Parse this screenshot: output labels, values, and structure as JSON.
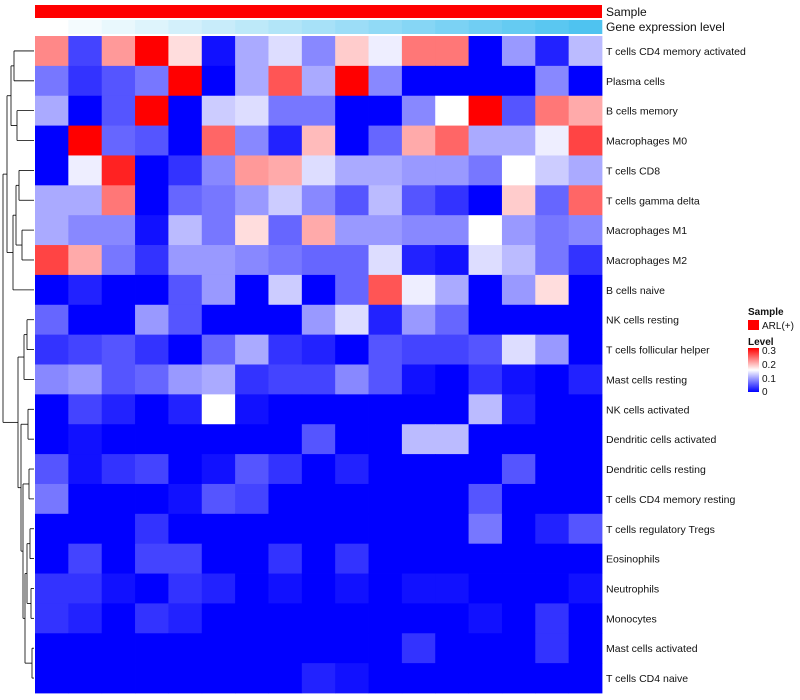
{
  "chart_data": {
    "type": "heatmap",
    "annotations": [
      {
        "name": "Sample",
        "color": "#ff0000"
      },
      {
        "name": "Gene expression level",
        "gradient": [
          "#ffffff",
          "#4fc3f0"
        ]
      }
    ],
    "rows": [
      "T cells CD4 memory activated",
      "Plasma cells",
      "B cells memory",
      "Macrophages M0",
      "T cells CD8",
      "T cells gamma delta",
      "Macrophages M1",
      "Macrophages M2",
      "B cells naive",
      "NK cells resting",
      "T cells follicular helper",
      "Mast cells resting",
      "NK cells activated",
      "Dendritic cells activated",
      "Dendritic cells resting",
      "T cells CD4 memory resting",
      "T cells regulatory  Tregs",
      "Eosinophils",
      "Neutrophils",
      "Monocytes",
      "Mast cells activated",
      "T cells CD4 naive"
    ],
    "values": [
      [
        0.22,
        0.04,
        0.21,
        0.3,
        0.17,
        0.01,
        0.1,
        0.13,
        0.08,
        0.18,
        0.14,
        0.23,
        0.23,
        0.0,
        0.09,
        0.02,
        0.11
      ],
      [
        0.07,
        0.03,
        0.05,
        0.07,
        0.3,
        0.0,
        0.1,
        0.25,
        0.1,
        0.3,
        0.08,
        0.0,
        0.0,
        0.0,
        0.0,
        0.08,
        0.0
      ],
      [
        0.1,
        0.0,
        0.05,
        0.3,
        0.0,
        0.12,
        0.13,
        0.07,
        0.07,
        0.0,
        0.0,
        0.08,
        0.15,
        0.3,
        0.05,
        0.23,
        0.2
      ],
      [
        0.0,
        0.3,
        0.06,
        0.05,
        0.0,
        0.24,
        0.08,
        0.02,
        0.19,
        0.0,
        0.06,
        0.2,
        0.24,
        0.1,
        0.1,
        0.14,
        0.26
      ],
      [
        0.0,
        0.14,
        0.28,
        0.0,
        0.03,
        0.08,
        0.21,
        0.2,
        0.13,
        0.1,
        0.1,
        0.09,
        0.09,
        0.07,
        0.15,
        0.12,
        0.1
      ],
      [
        0.1,
        0.1,
        0.23,
        0.0,
        0.06,
        0.07,
        0.09,
        0.12,
        0.08,
        0.05,
        0.11,
        0.05,
        0.03,
        0.0,
        0.18,
        0.06,
        0.24
      ],
      [
        0.1,
        0.08,
        0.08,
        0.01,
        0.11,
        0.07,
        0.17,
        0.06,
        0.2,
        0.09,
        0.09,
        0.08,
        0.08,
        0.15,
        0.09,
        0.07,
        0.08
      ],
      [
        0.26,
        0.2,
        0.07,
        0.03,
        0.09,
        0.09,
        0.08,
        0.07,
        0.06,
        0.06,
        0.13,
        0.02,
        0.01,
        0.13,
        0.11,
        0.07,
        0.03
      ],
      [
        0.0,
        0.02,
        0.0,
        0.0,
        0.05,
        0.09,
        0.0,
        0.12,
        0.0,
        0.06,
        0.25,
        0.14,
        0.1,
        0.0,
        0.09,
        0.17,
        0.0
      ],
      [
        0.06,
        0.0,
        0.0,
        0.09,
        0.05,
        0.0,
        0.0,
        0.0,
        0.09,
        0.13,
        0.02,
        0.09,
        0.06,
        0.0,
        0.0,
        0.0,
        0.0
      ],
      [
        0.03,
        0.04,
        0.05,
        0.03,
        0.0,
        0.06,
        0.1,
        0.03,
        0.02,
        0.0,
        0.05,
        0.04,
        0.04,
        0.05,
        0.13,
        0.09,
        0.0
      ],
      [
        0.08,
        0.09,
        0.05,
        0.06,
        0.09,
        0.1,
        0.03,
        0.04,
        0.04,
        0.08,
        0.05,
        0.01,
        0.0,
        0.03,
        0.01,
        0.0,
        0.02
      ],
      [
        0.0,
        0.04,
        0.02,
        0.0,
        0.02,
        0.15,
        0.01,
        0.0,
        0.0,
        0.0,
        0.0,
        0.0,
        0.0,
        0.11,
        0.02,
        0.0,
        0.0
      ],
      [
        0.0,
        0.01,
        0.0,
        0.0,
        0.0,
        0.0,
        0.0,
        0.0,
        0.05,
        0.0,
        0.0,
        0.11,
        0.11,
        0.0,
        0.0,
        0.0,
        0.0
      ],
      [
        0.05,
        0.01,
        0.03,
        0.04,
        0.0,
        0.01,
        0.05,
        0.03,
        0.0,
        0.02,
        0.0,
        0.0,
        0.0,
        0.0,
        0.05,
        0.0,
        0.0
      ],
      [
        0.07,
        0.0,
        0.0,
        0.0,
        0.01,
        0.05,
        0.04,
        0.0,
        0.0,
        0.0,
        0.0,
        0.0,
        0.0,
        0.05,
        0.0,
        0.0,
        0.0
      ],
      [
        0.0,
        0.0,
        0.0,
        0.03,
        0.0,
        0.0,
        0.0,
        0.0,
        0.0,
        0.0,
        0.0,
        0.0,
        0.0,
        0.07,
        0.0,
        0.02,
        0.05
      ],
      [
        0.0,
        0.04,
        0.0,
        0.04,
        0.04,
        0.0,
        0.0,
        0.03,
        0.0,
        0.03,
        0.0,
        0.0,
        0.0,
        0.0,
        0.0,
        0.0,
        0.0
      ],
      [
        0.03,
        0.03,
        0.01,
        0.0,
        0.03,
        0.02,
        0.0,
        0.01,
        0.0,
        0.01,
        0.0,
        0.01,
        0.01,
        0.0,
        0.0,
        0.0,
        0.01
      ],
      [
        0.03,
        0.02,
        0.0,
        0.03,
        0.02,
        0.0,
        0.0,
        0.0,
        0.0,
        0.0,
        0.0,
        0.0,
        0.0,
        0.01,
        0.0,
        0.03,
        0.0
      ],
      [
        0.0,
        0.0,
        0.0,
        0.0,
        0.0,
        0.0,
        0.0,
        0.0,
        0.0,
        0.0,
        0.0,
        0.03,
        0.0,
        0.0,
        0.0,
        0.03,
        0.0
      ],
      [
        0.0,
        0.0,
        0.0,
        0.0,
        0.0,
        0.0,
        0.0,
        0.0,
        0.02,
        0.01,
        0.0,
        0.0,
        0.0,
        0.0,
        0.0,
        0.0,
        0.0
      ]
    ],
    "color_scale": {
      "min": 0,
      "max": 0.3,
      "colors": [
        "#0000ff",
        "#ffffff",
        "#ff0000"
      ]
    },
    "legend": {
      "sample_title": "Sample",
      "sample_entry": "ARL(+)",
      "level_title": "Level",
      "ticks": [
        "0.3",
        "0.2",
        "0.1",
        "0"
      ]
    }
  }
}
